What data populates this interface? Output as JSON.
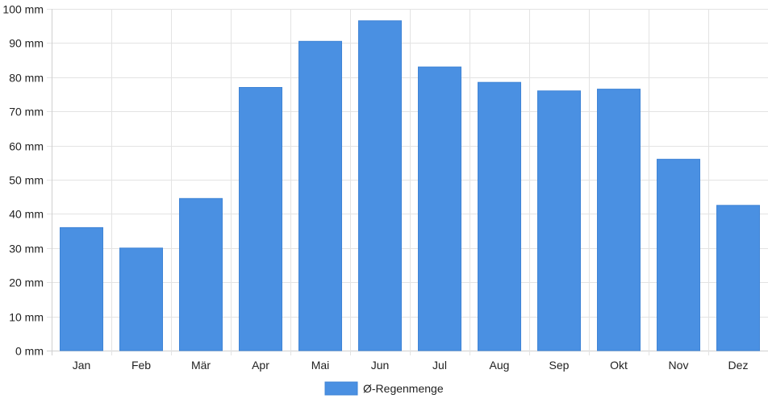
{
  "chart_data": {
    "type": "bar",
    "categories": [
      "Jan",
      "Feb",
      "Mär",
      "Apr",
      "Mai",
      "Jun",
      "Jul",
      "Aug",
      "Sep",
      "Okt",
      "Nov",
      "Dez"
    ],
    "series": [
      {
        "name": "Ø-Regenmenge",
        "values": [
          36,
          30,
          44.5,
          77,
          90.5,
          96.5,
          83,
          78.5,
          76,
          76.5,
          56,
          42.5
        ]
      }
    ],
    "ylim": [
      0,
      100
    ],
    "yticks": [
      0,
      10,
      20,
      30,
      40,
      50,
      60,
      70,
      80,
      90,
      100
    ],
    "ytick_labels": [
      "0 mm",
      "10 mm",
      "20 mm",
      "30 mm",
      "40 mm",
      "50 mm",
      "60 mm",
      "70 mm",
      "80 mm",
      "90 mm",
      "100 mm"
    ],
    "grid": true,
    "legend_position": "bottom-center",
    "colors": {
      "bar_fill": "#4a90e2",
      "bar_stroke": "#3f84d6",
      "grid": "#e3e3e3",
      "axis": "#cfcfcf"
    }
  }
}
